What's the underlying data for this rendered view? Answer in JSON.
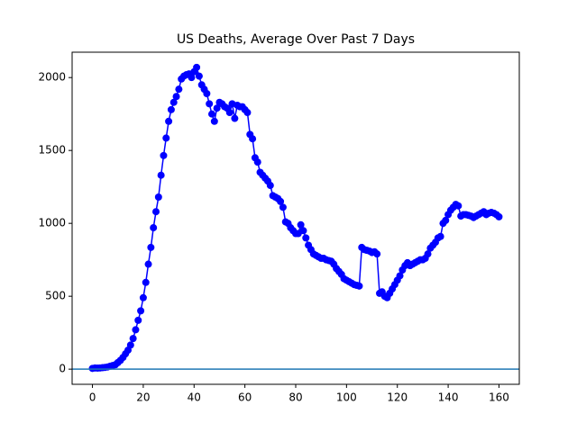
{
  "chart_data": {
    "type": "line",
    "title": "US Deaths, Average Over Past 7 Days",
    "x": [
      0,
      1,
      2,
      3,
      4,
      5,
      6,
      7,
      8,
      9,
      10,
      11,
      12,
      13,
      14,
      15,
      16,
      17,
      18,
      19,
      20,
      21,
      22,
      23,
      24,
      25,
      26,
      27,
      28,
      29,
      30,
      31,
      32,
      33,
      34,
      35,
      36,
      37,
      38,
      39,
      40,
      41,
      42,
      43,
      44,
      45,
      46,
      47,
      48,
      49,
      50,
      51,
      52,
      53,
      54,
      55,
      56,
      57,
      58,
      59,
      60,
      61,
      62,
      63,
      64,
      65,
      66,
      67,
      68,
      69,
      70,
      71,
      72,
      73,
      74,
      75,
      76,
      77,
      78,
      79,
      80,
      81,
      82,
      83,
      84,
      85,
      86,
      87,
      88,
      89,
      90,
      91,
      92,
      93,
      94,
      95,
      96,
      97,
      98,
      99,
      100,
      101,
      102,
      103,
      104,
      105,
      106,
      107,
      108,
      109,
      110,
      111,
      112,
      113,
      114,
      115,
      116,
      117,
      118,
      119,
      120,
      121,
      122,
      123,
      124,
      125,
      126,
      127,
      128,
      129,
      130,
      131,
      132,
      133,
      134,
      135,
      136,
      137,
      138,
      139,
      140,
      141,
      142,
      143,
      144,
      145,
      146,
      147,
      148,
      149,
      150,
      151,
      152,
      153,
      154,
      155,
      156,
      157,
      158,
      159,
      160
    ],
    "series": [
      {
        "color": "#0000ff",
        "values": [
          5,
          8,
          7,
          8,
          10,
          12,
          15,
          20,
          25,
          30,
          45,
          60,
          80,
          105,
          130,
          165,
          210,
          270,
          335,
          400,
          490,
          595,
          720,
          835,
          970,
          1080,
          1180,
          1330,
          1465,
          1585,
          1700,
          1780,
          1830,
          1870,
          1920,
          1990,
          2010,
          2020,
          2025,
          2000,
          2040,
          2070,
          2010,
          1950,
          1920,
          1890,
          1820,
          1750,
          1700,
          1790,
          1830,
          1820,
          1800,
          1790,
          1760,
          1820,
          1720,
          1810,
          1800,
          1800,
          1780,
          1760,
          1610,
          1580,
          1450,
          1420,
          1350,
          1330,
          1310,
          1290,
          1260,
          1190,
          1180,
          1170,
          1150,
          1110,
          1010,
          1000,
          970,
          950,
          930,
          930,
          990,
          950,
          900,
          850,
          820,
          790,
          780,
          770,
          760,
          760,
          750,
          745,
          740,
          720,
          690,
          670,
          650,
          620,
          610,
          600,
          590,
          580,
          575,
          570,
          835,
          820,
          815,
          810,
          800,
          805,
          790,
          520,
          530,
          500,
          490,
          520,
          550,
          580,
          610,
          640,
          680,
          710,
          730,
          710,
          720,
          730,
          740,
          750,
          750,
          760,
          790,
          830,
          850,
          870,
          900,
          910,
          1000,
          1020,
          1060,
          1090,
          1110,
          1130,
          1120,
          1050,
          1060,
          1060,
          1055,
          1050,
          1040,
          1050,
          1060,
          1070,
          1080,
          1060,
          1070,
          1075,
          1070,
          1060,
          1045
        ]
      }
    ],
    "hline": {
      "y": 0,
      "color": "#1f77b4"
    },
    "xlim": [
      -8,
      168
    ],
    "xticks": [
      0,
      20,
      40,
      60,
      80,
      100,
      120,
      140,
      160
    ],
    "ylim": [
      -104,
      2174
    ],
    "yticks": [
      0,
      500,
      1000,
      1500,
      2000
    ]
  }
}
